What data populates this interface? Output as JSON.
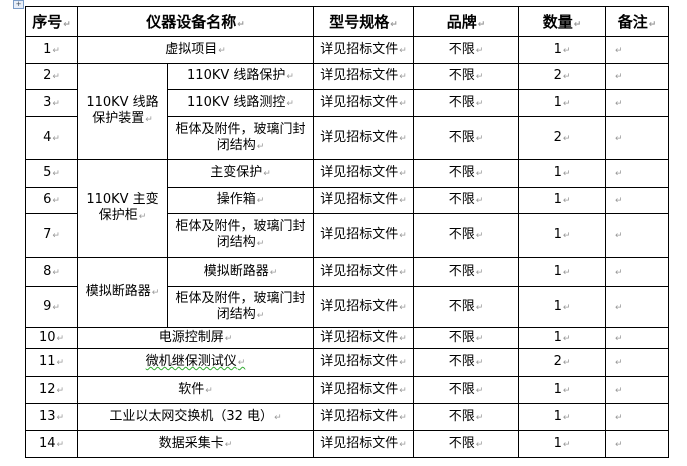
{
  "headers": [
    "序号",
    "仪器设备名称",
    "型号规格",
    "品牌",
    "数量",
    "备注"
  ],
  "groups": [
    "110KV 线路保护装置",
    "110KV 主变保护柜",
    "模拟断路器"
  ],
  "rows": [
    {
      "no": "1",
      "name": "虚拟项目",
      "spec": "详见招标文件",
      "brand": "不限",
      "qty": "1"
    },
    {
      "no": "2",
      "name": "110KV 线路保护",
      "spec": "详见招标文件",
      "brand": "不限",
      "qty": "2"
    },
    {
      "no": "3",
      "name": "110KV 线路测控",
      "spec": "详见招标文件",
      "brand": "不限",
      "qty": "1"
    },
    {
      "no": "4",
      "name": "柜体及附件，玻璃门封闭结构",
      "spec": "详见招标文件",
      "brand": "不限",
      "qty": "2"
    },
    {
      "no": "5",
      "name": "主变保护",
      "spec": "详见招标文件",
      "brand": "不限",
      "qty": "1"
    },
    {
      "no": "6",
      "name": "操作箱",
      "spec": "详见招标文件",
      "brand": "不限",
      "qty": "1"
    },
    {
      "no": "7",
      "name": "柜体及附件，玻璃门封闭结构",
      "spec": "详见招标文件",
      "brand": "不限",
      "qty": "1"
    },
    {
      "no": "8",
      "name": "模拟断路器",
      "spec": "详见招标文件",
      "brand": "不限",
      "qty": "1"
    },
    {
      "no": "9",
      "name": "柜体及附件，玻璃门封闭结构",
      "spec": "详见招标文件",
      "brand": "不限",
      "qty": "1"
    },
    {
      "no": "10",
      "name": "电源控制屏",
      "spec": "详见招标文件",
      "brand": "不限",
      "qty": "1"
    },
    {
      "no": "11",
      "name": "微机继保测试仪",
      "spec": "详见招标文件",
      "brand": "不限",
      "qty": "2"
    },
    {
      "no": "12",
      "name": "软件",
      "spec": "详见招标文件",
      "brand": "不限",
      "qty": "1"
    },
    {
      "no": "13",
      "name": "工业以太网交换机（32 电）",
      "spec": "详见招标文件",
      "brand": "不限",
      "qty": "1"
    },
    {
      "no": "14",
      "name": "数据采集卡",
      "spec": "详见招标文件",
      "brand": "不限",
      "qty": "1"
    }
  ]
}
